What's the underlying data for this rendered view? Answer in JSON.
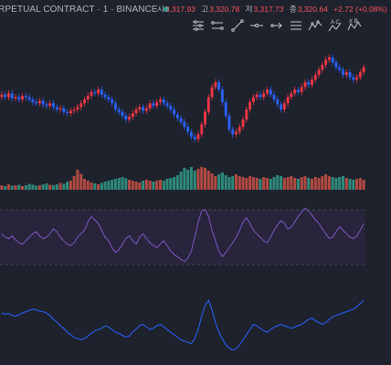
{
  "header": {
    "symbol_title": "RPETUAL CONTRACT · 1 · BINANCE",
    "market_status": "open",
    "status_color": "#26a69a"
  },
  "ohlc": {
    "open_label": "시",
    "open": "3,317.93",
    "high_label": "고",
    "high": "3,320.78",
    "low_label": "저",
    "low": "3,317.73",
    "close_label": "종",
    "close": "3,320.64",
    "change": "+2.72 (+0.08%)",
    "value_color": "#f7525f"
  },
  "toolbar": {
    "tools": [
      {
        "icon": "horizontal-sliders-icon"
      },
      {
        "icon": "channel-icon"
      },
      {
        "icon": "trend-line-icon"
      },
      {
        "icon": "horizontal-line-icon"
      },
      {
        "icon": "arrow-line-icon"
      },
      {
        "icon": "parallel-channel-icon"
      },
      {
        "icon": "zigzag-pattern-icon"
      },
      {
        "icon": "abcd-pattern-icon"
      },
      {
        "icon": "xabcd-pattern-icon"
      }
    ],
    "pattern_labels": {
      "abcd": "A C",
      "xabcd": "X B"
    }
  },
  "colors": {
    "background": "#1e222d",
    "bull_candle": "#f23645",
    "bear_candle": "#2962ff",
    "volume_up": "#b24a42",
    "volume_down": "#2e8a7a",
    "rsi_line": "#7e57c2",
    "rsi_band": "#2a2540",
    "lower_line": "#2962ff"
  },
  "chart_data": {
    "type": "candlestick",
    "description_series": "close",
    "candles_close": [
      0.62,
      0.6,
      0.63,
      0.59,
      0.6,
      0.58,
      0.61,
      0.6,
      0.58,
      0.56,
      0.55,
      0.57,
      0.54,
      0.53,
      0.55,
      0.52,
      0.5,
      0.51,
      0.48,
      0.47,
      0.49,
      0.5,
      0.52,
      0.55,
      0.58,
      0.61,
      0.64,
      0.63,
      0.66,
      0.62,
      0.6,
      0.58,
      0.55,
      0.5,
      0.48,
      0.45,
      0.42,
      0.44,
      0.47,
      0.5,
      0.52,
      0.49,
      0.51,
      0.55,
      0.53,
      0.56,
      0.58,
      0.55,
      0.53,
      0.5,
      0.46,
      0.43,
      0.4,
      0.36,
      0.32,
      0.28,
      0.26,
      0.3,
      0.38,
      0.48,
      0.6,
      0.68,
      0.72,
      0.66,
      0.56,
      0.45,
      0.34,
      0.3,
      0.32,
      0.36,
      0.42,
      0.5,
      0.56,
      0.6,
      0.62,
      0.6,
      0.63,
      0.66,
      0.62,
      0.58,
      0.54,
      0.5,
      0.55,
      0.6,
      0.63,
      0.66,
      0.64,
      0.68,
      0.72,
      0.7,
      0.74,
      0.78,
      0.82,
      0.86,
      0.9,
      0.92,
      0.88,
      0.84,
      0.82,
      0.78,
      0.8,
      0.76,
      0.74,
      0.76,
      0.8,
      0.84
    ],
    "volume": [
      0.1,
      0.08,
      0.12,
      0.09,
      0.1,
      0.11,
      0.08,
      0.1,
      0.13,
      0.11,
      0.09,
      0.1,
      0.12,
      0.14,
      0.11,
      0.1,
      0.12,
      0.15,
      0.13,
      0.18,
      0.2,
      0.3,
      0.44,
      0.35,
      0.24,
      0.2,
      0.16,
      0.14,
      0.12,
      0.15,
      0.18,
      0.2,
      0.22,
      0.24,
      0.26,
      0.28,
      0.25,
      0.22,
      0.2,
      0.18,
      0.16,
      0.2,
      0.22,
      0.2,
      0.18,
      0.2,
      0.22,
      0.2,
      0.24,
      0.26,
      0.28,
      0.32,
      0.4,
      0.48,
      0.44,
      0.5,
      0.42,
      0.46,
      0.5,
      0.48,
      0.42,
      0.36,
      0.3,
      0.34,
      0.38,
      0.32,
      0.28,
      0.3,
      0.34,
      0.3,
      0.28,
      0.26,
      0.3,
      0.28,
      0.26,
      0.24,
      0.28,
      0.26,
      0.24,
      0.28,
      0.32,
      0.3,
      0.26,
      0.28,
      0.3,
      0.26,
      0.24,
      0.28,
      0.3,
      0.26,
      0.24,
      0.28,
      0.26,
      0.3,
      0.34,
      0.3,
      0.28,
      0.26,
      0.28,
      0.3,
      0.26,
      0.24,
      0.22,
      0.24,
      0.26,
      0.22
    ],
    "rsi": [
      0.55,
      0.5,
      0.48,
      0.52,
      0.46,
      0.42,
      0.4,
      0.45,
      0.5,
      0.55,
      0.58,
      0.52,
      0.48,
      0.5,
      0.55,
      0.62,
      0.58,
      0.5,
      0.45,
      0.4,
      0.38,
      0.42,
      0.5,
      0.55,
      0.6,
      0.72,
      0.8,
      0.75,
      0.7,
      0.6,
      0.5,
      0.45,
      0.35,
      0.28,
      0.32,
      0.4,
      0.48,
      0.52,
      0.45,
      0.4,
      0.5,
      0.55,
      0.48,
      0.42,
      0.38,
      0.35,
      0.4,
      0.45,
      0.38,
      0.3,
      0.25,
      0.22,
      0.18,
      0.15,
      0.2,
      0.3,
      0.5,
      0.72,
      0.88,
      0.9,
      0.8,
      0.6,
      0.45,
      0.3,
      0.22,
      0.28,
      0.35,
      0.42,
      0.5,
      0.6,
      0.72,
      0.78,
      0.7,
      0.6,
      0.55,
      0.5,
      0.45,
      0.42,
      0.5,
      0.6,
      0.68,
      0.74,
      0.7,
      0.62,
      0.65,
      0.72,
      0.8,
      0.86,
      0.92,
      0.88,
      0.82,
      0.75,
      0.7,
      0.62,
      0.55,
      0.48,
      0.5,
      0.58,
      0.65,
      0.6,
      0.55,
      0.5,
      0.48,
      0.52,
      0.6,
      0.7
    ],
    "lower_indicator": [
      0.7,
      0.68,
      0.69,
      0.66,
      0.65,
      0.67,
      0.7,
      0.72,
      0.74,
      0.76,
      0.75,
      0.73,
      0.72,
      0.7,
      0.66,
      0.6,
      0.56,
      0.5,
      0.46,
      0.4,
      0.36,
      0.32,
      0.3,
      0.28,
      0.3,
      0.34,
      0.38,
      0.42,
      0.44,
      0.46,
      0.5,
      0.48,
      0.44,
      0.4,
      0.38,
      0.35,
      0.32,
      0.34,
      0.4,
      0.45,
      0.5,
      0.52,
      0.48,
      0.44,
      0.46,
      0.5,
      0.52,
      0.48,
      0.44,
      0.4,
      0.36,
      0.32,
      0.28,
      0.26,
      0.24,
      0.22,
      0.3,
      0.45,
      0.65,
      0.82,
      0.9,
      0.75,
      0.55,
      0.4,
      0.3,
      0.2,
      0.15,
      0.12,
      0.14,
      0.2,
      0.28,
      0.36,
      0.44,
      0.52,
      0.5,
      0.46,
      0.42,
      0.4,
      0.44,
      0.48,
      0.5,
      0.52,
      0.5,
      0.48,
      0.46,
      0.48,
      0.5,
      0.52,
      0.56,
      0.6,
      0.62,
      0.58,
      0.55,
      0.52,
      0.55,
      0.6,
      0.64,
      0.66,
      0.68,
      0.7,
      0.72,
      0.74,
      0.76,
      0.8,
      0.85,
      0.9
    ]
  }
}
